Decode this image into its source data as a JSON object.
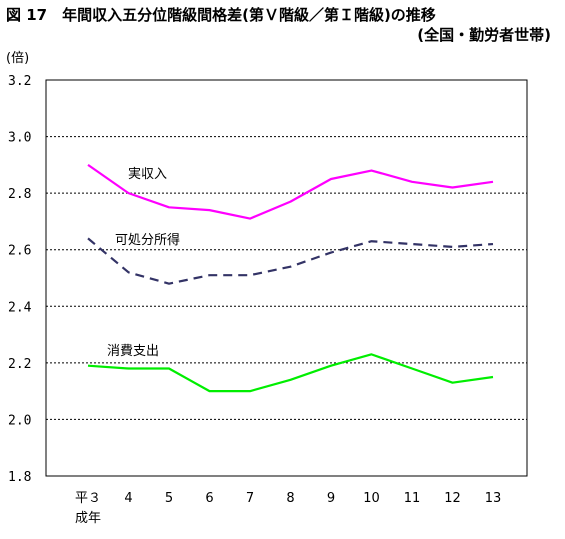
{
  "title": "図 17　年間収入五分位階級間格差(第Ｖ階級／第Ｉ階級)の推移",
  "subtitle": "(全国・勤労者世帯)",
  "chart_data": {
    "type": "line",
    "ylabel": "(倍)",
    "ylim": [
      1.8,
      3.2
    ],
    "yticks": [
      "1.8",
      "2.0",
      "2.2",
      "2.4",
      "2.6",
      "2.8",
      "3.0",
      "3.2"
    ],
    "categories": [
      "平３",
      "4",
      "5",
      "6",
      "7",
      "8",
      "9",
      "10",
      "11",
      "12",
      "13"
    ],
    "category_prefix_line2": "成年",
    "grid": true,
    "series": [
      {
        "name": "実収入",
        "color": "#ff00ff",
        "dash": "solid",
        "values": [
          2.9,
          2.8,
          2.75,
          2.74,
          2.71,
          2.77,
          2.85,
          2.88,
          2.84,
          2.82,
          2.84
        ]
      },
      {
        "name": "可処分所得",
        "color": "#333366",
        "dash": "dashed",
        "values": [
          2.64,
          2.52,
          2.48,
          2.51,
          2.51,
          2.54,
          2.59,
          2.63,
          2.62,
          2.61,
          2.62
        ]
      },
      {
        "name": "消費支出",
        "color": "#00ee00",
        "dash": "solid",
        "values": [
          2.19,
          2.18,
          2.18,
          2.1,
          2.1,
          2.14,
          2.19,
          2.23,
          2.18,
          2.13,
          2.15
        ]
      }
    ]
  }
}
